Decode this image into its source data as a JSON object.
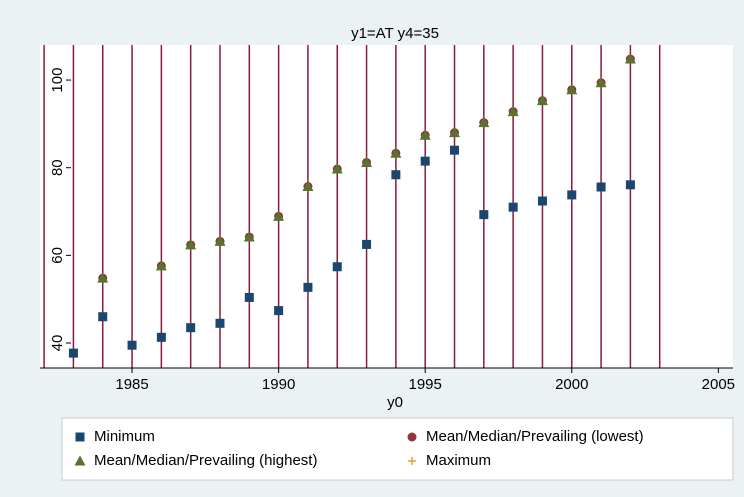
{
  "chart_data": {
    "type": "scatter",
    "title": "y1=AT y4=35",
    "x_label": "y0",
    "x": [
      1983,
      1984,
      1985,
      1986,
      1987,
      1988,
      1989,
      1990,
      1991,
      1992,
      1993,
      1994,
      1995,
      1996,
      1997,
      1998,
      1999,
      2000,
      2001,
      2002
    ],
    "series": [
      {
        "name": "Minimum",
        "color": "#1a476f",
        "marker": "square",
        "values": [
          37.7,
          46,
          39.5,
          41.3,
          43.5,
          44.5,
          50.4,
          47.4,
          52.7,
          57.4,
          62.5,
          78.4,
          81.5,
          84,
          69.3,
          71,
          72.4,
          73.8,
          75.6,
          76.1
        ]
      },
      {
        "name": "Mean/Median/Prevailing (lowest)",
        "color": "#90353b",
        "marker": "circle",
        "values": [
          null,
          54.8,
          null,
          57.6,
          62.4,
          63.2,
          64.2,
          68.9,
          75.7,
          79.7,
          81.2,
          83.3,
          87.4,
          88,
          90.3,
          92.8,
          95.3,
          97.8,
          99.4,
          104.8
        ]
      },
      {
        "name": "Mean/Median/Prevailing (highest)",
        "color": "#55752f",
        "marker": "triangle",
        "values": [
          null,
          54.8,
          null,
          57.6,
          62.4,
          63.2,
          64.2,
          68.9,
          75.7,
          79.7,
          81.2,
          83.3,
          87.4,
          88,
          90.3,
          92.8,
          95.3,
          97.8,
          99.4,
          104.8
        ]
      },
      {
        "name": "Maximum",
        "color": "#e8a23a",
        "marker": "plus",
        "values": [
          null,
          54.8,
          null,
          57.6,
          62.4,
          63.2,
          64.2,
          68.9,
          75.7,
          79.7,
          81.2,
          83.3,
          87.4,
          88,
          90.3,
          92.8,
          95.3,
          97.8,
          99.4,
          104.8
        ]
      }
    ],
    "xlim": [
      1981.86,
      2005.5
    ],
    "xticks": [
      1985,
      1990,
      1995,
      2000,
      2005
    ],
    "ylim": [
      34.3,
      108
    ],
    "yticks": [
      40,
      60,
      80,
      100
    ],
    "xlines": {
      "values": [
        1982,
        1983,
        1984,
        1985,
        1986,
        1987,
        1988,
        1989,
        1990,
        1991,
        1992,
        1993,
        1994,
        1995,
        1996,
        1997,
        1998,
        1999,
        2000,
        2001,
        2002,
        2003
      ],
      "color": "#8b1a3b"
    },
    "legend": "bottom"
  }
}
